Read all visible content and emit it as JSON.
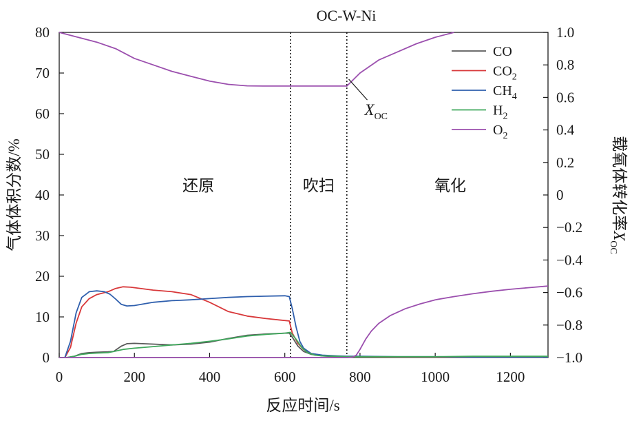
{
  "chart_data": {
    "type": "line",
    "title": "OC-W-Ni",
    "xlabel": "反应时间/s",
    "ylabel_left": "气体体积分数/%",
    "ylabel_right": {
      "main": "载氧体转化率",
      "symbol": "X",
      "sub": "OC"
    },
    "xlim": [
      0,
      1300
    ],
    "ylim_left": [
      0,
      80
    ],
    "ylim_right": [
      -1.0,
      1.0
    ],
    "x_ticks": [
      0,
      200,
      400,
      600,
      800,
      1000,
      1200
    ],
    "x_tick_labels": [
      "0",
      "200",
      "400",
      "600",
      "800",
      "1000",
      "1200"
    ],
    "y_left_ticks": [
      0,
      10,
      20,
      30,
      40,
      50,
      60,
      70,
      80
    ],
    "y_left_tick_labels": [
      "0",
      "10",
      "20",
      "30",
      "40",
      "50",
      "60",
      "70",
      "80"
    ],
    "y_right_ticks": [
      -1.0,
      -0.8,
      -0.6,
      -0.4,
      -0.2,
      0,
      0.2,
      0.4,
      0.6,
      0.8,
      1.0
    ],
    "y_right_tick_labels": [
      "−1.0",
      "−0.8",
      "−0.6",
      "−0.4",
      "−0.2",
      "0",
      "0.2",
      "0.4",
      "0.6",
      "0.8",
      "1.0"
    ],
    "grid": false,
    "legend_position": "top-right",
    "vlines": [
      615,
      765
    ],
    "regions": [
      {
        "label": "还原",
        "x": 370,
        "y": 41
      },
      {
        "label": "吹扫",
        "x": 690,
        "y": 41
      },
      {
        "label": "氧化",
        "x": 1040,
        "y": 41
      }
    ],
    "annotation": {
      "symbol": "X",
      "sub": "OC",
      "x": 845,
      "y": 61,
      "arrow_to": [
        770,
        68.5
      ]
    },
    "series": [
      {
        "name": "CO",
        "sub": "",
        "color": "#5a5a5a",
        "axis": "left",
        "x": [
          0,
          20,
          40,
          60,
          80,
          100,
          130,
          145,
          165,
          180,
          200,
          250,
          300,
          350,
          400,
          450,
          500,
          550,
          600,
          612,
          620,
          635,
          650,
          670,
          700,
          740,
          765,
          800,
          900,
          1000,
          1100,
          1200,
          1300
        ],
        "y": [
          0,
          0,
          0.3,
          1.0,
          1.2,
          1.3,
          1.4,
          1.5,
          2.8,
          3.4,
          3.5,
          3.3,
          3.1,
          3.3,
          3.8,
          4.7,
          5.5,
          5.8,
          6.0,
          6.0,
          5.0,
          2.8,
          1.5,
          0.8,
          0.4,
          0.2,
          0.1,
          0.1,
          0.1,
          0.1,
          0.1,
          0.1,
          0.1
        ]
      },
      {
        "name": "CO",
        "sub": "2",
        "color": "#d8383a",
        "axis": "left",
        "x": [
          0,
          15,
          30,
          45,
          60,
          80,
          100,
          130,
          150,
          170,
          190,
          250,
          300,
          350,
          400,
          450,
          500,
          550,
          590,
          612,
          620,
          635,
          650,
          670,
          700,
          740,
          765,
          800,
          900,
          1000,
          1100,
          1200,
          1300
        ],
        "y": [
          0,
          0,
          2.5,
          8.5,
          12.5,
          14.5,
          15.5,
          16.2,
          17.0,
          17.4,
          17.3,
          16.6,
          16.2,
          15.5,
          13.6,
          11.3,
          10.2,
          9.6,
          9.2,
          9.0,
          6.0,
          3.5,
          2.0,
          1.0,
          0.5,
          0.3,
          0.2,
          0.2,
          0.1,
          0.1,
          0.1,
          0.1,
          0.1
        ]
      },
      {
        "name": "CH",
        "sub": "4",
        "color": "#2f5fad",
        "axis": "left",
        "x": [
          0,
          15,
          30,
          45,
          60,
          80,
          100,
          120,
          135,
          150,
          165,
          180,
          200,
          250,
          300,
          350,
          400,
          450,
          500,
          550,
          600,
          612,
          620,
          630,
          640,
          650,
          670,
          700,
          740,
          765,
          800,
          900,
          1000,
          1100,
          1200,
          1300
        ],
        "y": [
          0,
          0,
          4,
          11,
          14.8,
          16.2,
          16.4,
          16.2,
          15.6,
          14.4,
          13.1,
          12.7,
          12.8,
          13.6,
          14.0,
          14.2,
          14.5,
          14.8,
          15.0,
          15.1,
          15.2,
          15.0,
          12.0,
          7.5,
          4.0,
          2.3,
          1.0,
          0.6,
          0.4,
          0.3,
          0.3,
          0.2,
          0.2,
          0.1,
          0.1,
          0.1
        ]
      },
      {
        "name": "H",
        "sub": "2",
        "color": "#3fa85c",
        "axis": "left",
        "x": [
          0,
          20,
          40,
          60,
          80,
          100,
          130,
          150,
          170,
          200,
          250,
          300,
          350,
          400,
          450,
          500,
          550,
          600,
          615,
          630,
          645,
          660,
          680,
          700,
          740,
          765,
          800,
          900,
          1000,
          1100,
          1200,
          1300
        ],
        "y": [
          0,
          0,
          0.3,
          0.8,
          1.0,
          1.1,
          1.2,
          1.6,
          2.0,
          2.3,
          2.7,
          3.1,
          3.5,
          4.0,
          4.6,
          5.3,
          5.7,
          6.0,
          6.2,
          4.5,
          2.5,
          1.2,
          0.6,
          0.4,
          0.3,
          0.2,
          0.2,
          0.2,
          0.2,
          0.3,
          0.3,
          0.3
        ]
      },
      {
        "name": "O",
        "sub": "2",
        "color": "#9b4fae",
        "axis": "left",
        "x": [
          0,
          765,
          780,
          790,
          800,
          815,
          830,
          850,
          880,
          920,
          960,
          1000,
          1050,
          1100,
          1150,
          1200,
          1250,
          1300
        ],
        "y": [
          0,
          0,
          0.1,
          0.6,
          2.0,
          4.5,
          6.5,
          8.4,
          10.3,
          12.0,
          13.2,
          14.2,
          15.0,
          15.7,
          16.3,
          16.8,
          17.2,
          17.6
        ]
      },
      {
        "name": "X",
        "sub": "OC",
        "color": "#9b4fae",
        "axis": "right",
        "legend": false,
        "x": [
          0,
          50,
          100,
          150,
          200,
          250,
          300,
          350,
          400,
          450,
          500,
          550,
          600,
          615,
          700,
          765,
          800,
          850,
          900,
          950,
          1000,
          1050
        ],
        "y": [
          1.0,
          0.97,
          0.94,
          0.9,
          0.84,
          0.8,
          0.76,
          0.73,
          0.7,
          0.68,
          0.671,
          0.67,
          0.67,
          0.67,
          0.67,
          0.67,
          0.75,
          0.83,
          0.88,
          0.93,
          0.97,
          1.0
        ]
      }
    ]
  }
}
